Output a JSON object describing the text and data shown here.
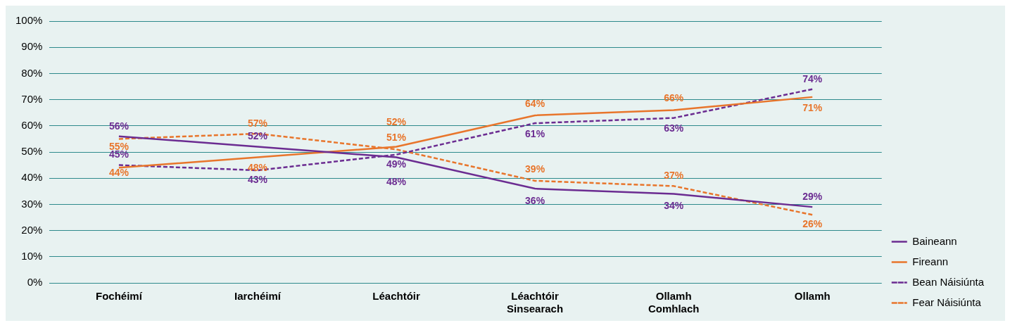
{
  "chart_data": {
    "type": "line",
    "categories": [
      "Fochéimí",
      "Iarchéimí",
      "Léachtóir",
      "Léachtóir Sinsearach",
      "Ollamh Comhlach",
      "Ollamh"
    ],
    "series": [
      {
        "name": "Baineann",
        "color": "#6b2c91",
        "values": [
          56,
          52,
          48,
          36,
          34,
          29
        ],
        "value_labels": [
          "56%",
          "52%",
          "48%",
          "36%",
          "34%",
          "29%"
        ],
        "line_style": "solid"
      },
      {
        "name": "Fireann",
        "color": "#e8752b",
        "values": [
          44,
          48,
          52,
          64,
          66,
          71
        ],
        "value_labels": [
          "44%",
          "48%",
          "52%",
          "64%",
          "66%",
          "71%"
        ],
        "line_style": "solid"
      },
      {
        "name": "Bean Náisiúnta",
        "color": "#6b2c91",
        "values": [
          45,
          43,
          49,
          61,
          63,
          74
        ],
        "value_labels": [
          "45%",
          "43%",
          "49%",
          "61%",
          "63%",
          "74%"
        ],
        "line_style": "dashed"
      },
      {
        "name": "Fear Náisiúnta",
        "color": "#e8752b",
        "values": [
          55,
          57,
          51,
          39,
          37,
          26
        ],
        "value_labels": [
          "55%",
          "57%",
          "51%",
          "39%",
          "37%",
          "26%"
        ],
        "line_style": "dashed"
      }
    ],
    "ylim": [
      0,
      100
    ],
    "yticks": [
      {
        "value": 0,
        "label": "0%"
      },
      {
        "value": 10,
        "label": "10%"
      },
      {
        "value": 20,
        "label": "20%"
      },
      {
        "value": 30,
        "label": "30%"
      },
      {
        "value": 40,
        "label": "40%"
      },
      {
        "value": 50,
        "label": "50%"
      },
      {
        "value": 60,
        "label": "60%"
      },
      {
        "value": 70,
        "label": "70%"
      },
      {
        "value": 80,
        "label": "80%"
      },
      {
        "value": 90,
        "label": "90%"
      },
      {
        "value": 100,
        "label": "100%"
      }
    ],
    "grid": "y",
    "legend": "right",
    "marker": "none"
  }
}
